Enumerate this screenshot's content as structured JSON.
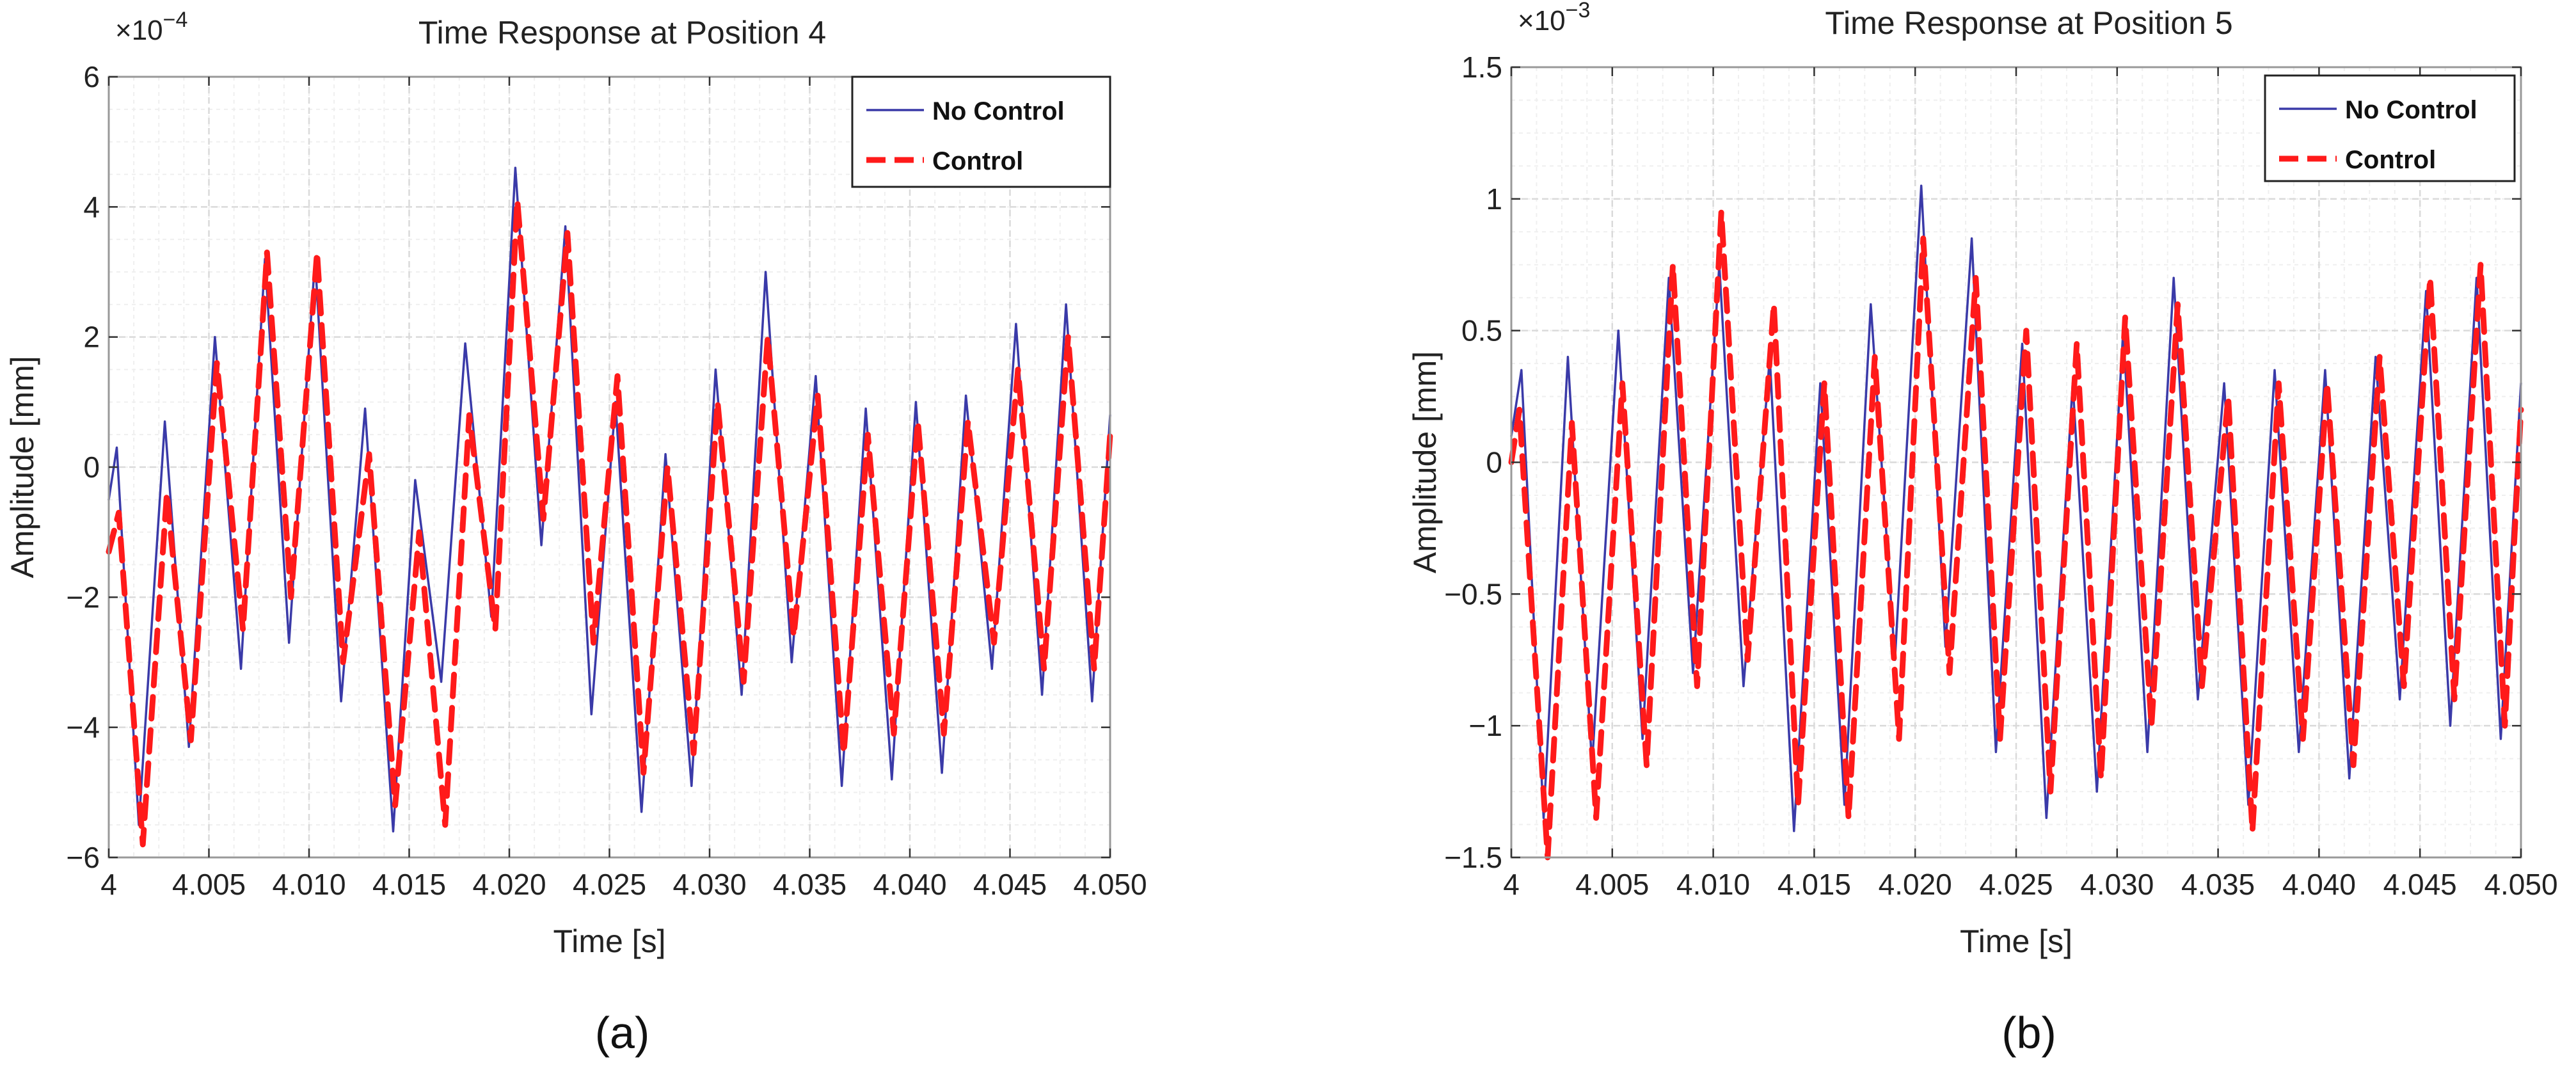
{
  "chart_data": [
    {
      "type": "line",
      "title": "Time Response at Position 4",
      "xlabel": "Time [s]",
      "ylabel": "Amplitude [mm]",
      "exponent_label": "×10",
      "exponent_power": "−4",
      "scale": 0.0001,
      "xlim": [
        4,
        4.05
      ],
      "ylim": [
        -6,
        6
      ],
      "xticks": [
        4,
        4.005,
        4.01,
        4.015,
        4.02,
        4.025,
        4.03,
        4.035,
        4.04,
        4.045,
        4.05
      ],
      "xtick_labels": [
        "4",
        "4.005",
        "4.010",
        "4.015",
        "4.020",
        "4.025",
        "4.030",
        "4.035",
        "4.040",
        "4.045",
        "4.050"
      ],
      "yticks": [
        -6,
        -4,
        -2,
        0,
        2,
        4,
        6
      ],
      "ytick_labels": [
        "−6",
        "−4",
        "−2",
        "0",
        "2",
        "4",
        "6"
      ],
      "caption": "(a)",
      "series": [
        {
          "name": "No Control",
          "color": "#3a3aa8",
          "style": "solid",
          "points": [
            [
              4.0,
              -0.5
            ],
            [
              4.0004,
              0.3
            ],
            [
              4.0015,
              -5.5
            ],
            [
              4.0028,
              0.7
            ],
            [
              4.004,
              -4.3
            ],
            [
              4.0053,
              2.0
            ],
            [
              4.0066,
              -3.1
            ],
            [
              4.0078,
              3.2
            ],
            [
              4.009,
              -2.7
            ],
            [
              4.0103,
              3.2
            ],
            [
              4.0116,
              -3.6
            ],
            [
              4.0128,
              0.9
            ],
            [
              4.0142,
              -5.6
            ],
            [
              4.0153,
              -0.2
            ],
            [
              4.0166,
              -3.3
            ],
            [
              4.0178,
              1.9
            ],
            [
              4.0191,
              -2.3
            ],
            [
              4.0203,
              4.6
            ],
            [
              4.0216,
              -1.2
            ],
            [
              4.0228,
              3.7
            ],
            [
              4.0241,
              -3.8
            ],
            [
              4.0253,
              1.0
            ],
            [
              4.0266,
              -5.3
            ],
            [
              4.0278,
              0.2
            ],
            [
              4.0291,
              -4.9
            ],
            [
              4.0303,
              1.5
            ],
            [
              4.0316,
              -3.5
            ],
            [
              4.0328,
              3.0
            ],
            [
              4.0341,
              -3.0
            ],
            [
              4.0353,
              1.4
            ],
            [
              4.0366,
              -4.9
            ],
            [
              4.0378,
              0.9
            ],
            [
              4.0391,
              -4.8
            ],
            [
              4.0403,
              1.0
            ],
            [
              4.0416,
              -4.7
            ],
            [
              4.0428,
              1.1
            ],
            [
              4.0441,
              -3.1
            ],
            [
              4.0453,
              2.2
            ],
            [
              4.0466,
              -3.5
            ],
            [
              4.0478,
              2.5
            ],
            [
              4.0491,
              -3.6
            ],
            [
              4.05,
              0.8
            ]
          ]
        },
        {
          "name": "Control",
          "color": "#ff1a1a",
          "style": "dashed",
          "points": [
            [
              4.0,
              -1.3
            ],
            [
              4.0005,
              -0.7
            ],
            [
              4.0017,
              -5.8
            ],
            [
              4.0029,
              -0.4
            ],
            [
              4.0041,
              -4.2
            ],
            [
              4.0054,
              1.6
            ],
            [
              4.0067,
              -2.5
            ],
            [
              4.0079,
              3.3
            ],
            [
              4.0091,
              -2.0
            ],
            [
              4.0104,
              3.3
            ],
            [
              4.0117,
              -3.0
            ],
            [
              4.013,
              0.2
            ],
            [
              4.0143,
              -5.2
            ],
            [
              4.0155,
              -1.0
            ],
            [
              4.0168,
              -5.5
            ],
            [
              4.018,
              0.8
            ],
            [
              4.0193,
              -2.5
            ],
            [
              4.0204,
              4.1
            ],
            [
              4.0217,
              -0.8
            ],
            [
              4.0229,
              3.6
            ],
            [
              4.0242,
              -2.7
            ],
            [
              4.0254,
              1.4
            ],
            [
              4.0267,
              -4.7
            ],
            [
              4.0279,
              0.0
            ],
            [
              4.0292,
              -4.4
            ],
            [
              4.0304,
              1.0
            ],
            [
              4.0317,
              -3.3
            ],
            [
              4.0329,
              2.0
            ],
            [
              4.0342,
              -2.6
            ],
            [
              4.0354,
              1.1
            ],
            [
              4.0367,
              -4.4
            ],
            [
              4.0379,
              0.5
            ],
            [
              4.0392,
              -4.1
            ],
            [
              4.0404,
              0.7
            ],
            [
              4.0417,
              -4.1
            ],
            [
              4.0429,
              0.7
            ],
            [
              4.0442,
              -2.7
            ],
            [
              4.0454,
              1.5
            ],
            [
              4.0467,
              -3.1
            ],
            [
              4.0479,
              2.0
            ],
            [
              4.0492,
              -3.1
            ],
            [
              4.05,
              0.5
            ]
          ]
        }
      ]
    },
    {
      "type": "line",
      "title": "Time Response at Position 5",
      "xlabel": "Time [s]",
      "ylabel": "Amplitude [mm]",
      "exponent_label": "×10",
      "exponent_power": "−3",
      "scale": 0.001,
      "xlim": [
        4,
        4.05
      ],
      "ylim": [
        -1.5,
        1.5
      ],
      "xticks": [
        4,
        4.005,
        4.01,
        4.015,
        4.02,
        4.025,
        4.03,
        4.035,
        4.04,
        4.045,
        4.05
      ],
      "xtick_labels": [
        "4",
        "4.005",
        "4.010",
        "4.015",
        "4.020",
        "4.025",
        "4.030",
        "4.035",
        "4.040",
        "4.045",
        "4.050"
      ],
      "yticks": [
        -1.5,
        -1,
        -0.5,
        0,
        0.5,
        1,
        1.5
      ],
      "ytick_labels": [
        "−1.5",
        "−1",
        "−0.5",
        "0",
        "0.5",
        "1",
        "1.5"
      ],
      "caption": "(b)",
      "series": [
        {
          "name": "No Control",
          "color": "#3a3aa8",
          "style": "solid",
          "points": [
            [
              4.0,
              0.1
            ],
            [
              4.0005,
              0.35
            ],
            [
              4.0016,
              -1.35
            ],
            [
              4.0028,
              0.4
            ],
            [
              4.004,
              -1.15
            ],
            [
              4.0053,
              0.5
            ],
            [
              4.0065,
              -1.05
            ],
            [
              4.0078,
              0.7
            ],
            [
              4.009,
              -0.8
            ],
            [
              4.0103,
              0.75
            ],
            [
              4.0115,
              -0.85
            ],
            [
              4.0128,
              0.4
            ],
            [
              4.014,
              -1.4
            ],
            [
              4.0153,
              0.3
            ],
            [
              4.0165,
              -1.3
            ],
            [
              4.0178,
              0.6
            ],
            [
              4.019,
              -0.75
            ],
            [
              4.0203,
              1.05
            ],
            [
              4.0215,
              -0.7
            ],
            [
              4.0228,
              0.85
            ],
            [
              4.024,
              -1.1
            ],
            [
              4.0253,
              0.45
            ],
            [
              4.0265,
              -1.35
            ],
            [
              4.0278,
              0.3
            ],
            [
              4.029,
              -1.25
            ],
            [
              4.0303,
              0.5
            ],
            [
              4.0315,
              -1.1
            ],
            [
              4.0328,
              0.7
            ],
            [
              4.034,
              -0.9
            ],
            [
              4.0353,
              0.3
            ],
            [
              4.0365,
              -1.3
            ],
            [
              4.0378,
              0.35
            ],
            [
              4.039,
              -1.1
            ],
            [
              4.0403,
              0.35
            ],
            [
              4.0415,
              -1.2
            ],
            [
              4.0428,
              0.4
            ],
            [
              4.044,
              -0.9
            ],
            [
              4.0453,
              0.65
            ],
            [
              4.0465,
              -1.0
            ],
            [
              4.0478,
              0.7
            ],
            [
              4.049,
              -1.05
            ],
            [
              4.05,
              0.3
            ]
          ]
        },
        {
          "name": "Control",
          "color": "#ff1a1a",
          "style": "dashed",
          "points": [
            [
              4.0,
              0.0
            ],
            [
              4.0004,
              0.2
            ],
            [
              4.0018,
              -1.5
            ],
            [
              4.003,
              0.15
            ],
            [
              4.0042,
              -1.35
            ],
            [
              4.0055,
              0.3
            ],
            [
              4.0067,
              -1.15
            ],
            [
              4.008,
              0.75
            ],
            [
              4.0092,
              -0.85
            ],
            [
              4.0104,
              0.95
            ],
            [
              4.0117,
              -0.75
            ],
            [
              4.013,
              0.6
            ],
            [
              4.0142,
              -1.3
            ],
            [
              4.0155,
              0.3
            ],
            [
              4.0167,
              -1.35
            ],
            [
              4.018,
              0.4
            ],
            [
              4.0192,
              -1.05
            ],
            [
              4.0204,
              0.85
            ],
            [
              4.0217,
              -0.8
            ],
            [
              4.023,
              0.7
            ],
            [
              4.0242,
              -1.05
            ],
            [
              4.0255,
              0.5
            ],
            [
              4.0267,
              -1.25
            ],
            [
              4.028,
              0.45
            ],
            [
              4.0292,
              -1.2
            ],
            [
              4.0304,
              0.55
            ],
            [
              4.0317,
              -1.0
            ],
            [
              4.033,
              0.6
            ],
            [
              4.0342,
              -0.85
            ],
            [
              4.0355,
              0.25
            ],
            [
              4.0367,
              -1.4
            ],
            [
              4.038,
              0.3
            ],
            [
              4.0392,
              -1.05
            ],
            [
              4.0404,
              0.3
            ],
            [
              4.0417,
              -1.15
            ],
            [
              4.043,
              0.4
            ],
            [
              4.0442,
              -0.85
            ],
            [
              4.0455,
              0.7
            ],
            [
              4.0467,
              -0.9
            ],
            [
              4.048,
              0.75
            ],
            [
              4.0492,
              -1.0
            ],
            [
              4.05,
              0.2
            ]
          ]
        }
      ]
    }
  ]
}
